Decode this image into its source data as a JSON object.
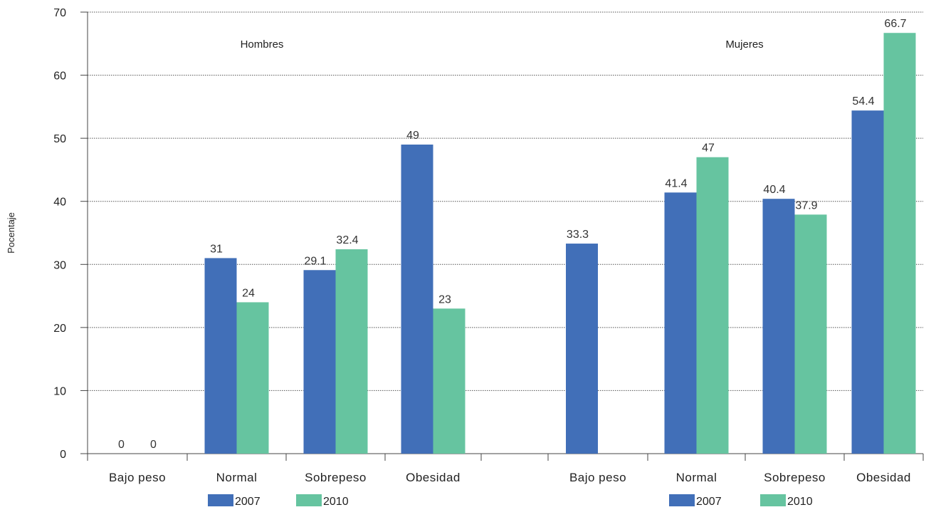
{
  "chart_data": {
    "type": "bar",
    "ylabel": "Pocentaje",
    "ylim": [
      0,
      70
    ],
    "yticks": [
      0,
      10,
      20,
      30,
      40,
      50,
      60,
      70
    ],
    "grid": true,
    "panels": [
      {
        "title": "Hombres",
        "categories": [
          "Bajo peso",
          "Normal",
          "Sobrepeso",
          "Obesidad"
        ],
        "series": [
          {
            "name": "2007",
            "values": [
              0,
              31,
              29.1,
              49
            ],
            "labels": [
              "0",
              "31",
              "29.1",
              "49"
            ]
          },
          {
            "name": "2010",
            "values": [
              0,
              24,
              32.4,
              23
            ],
            "labels": [
              "0",
              "24",
              "32.4",
              "23"
            ]
          }
        ]
      },
      {
        "title": "Mujeres",
        "categories": [
          "Bajo peso",
          "Normal",
          "Sobrepeso",
          "Obesidad"
        ],
        "series": [
          {
            "name": "2007",
            "values": [
              33.3,
              41.4,
              40.4,
              54.4
            ],
            "labels": [
              "33.3",
              "41.4",
              "40.4",
              "54.4"
            ]
          },
          {
            "name": "2010",
            "values": [
              null,
              47,
              37.9,
              66.7
            ],
            "labels": [
              "",
              "47",
              "37.9",
              "66.7"
            ]
          }
        ]
      }
    ],
    "colors": {
      "2007": "#416fb8",
      "2010": "#66c4a0"
    },
    "legend_position": "bottom"
  }
}
